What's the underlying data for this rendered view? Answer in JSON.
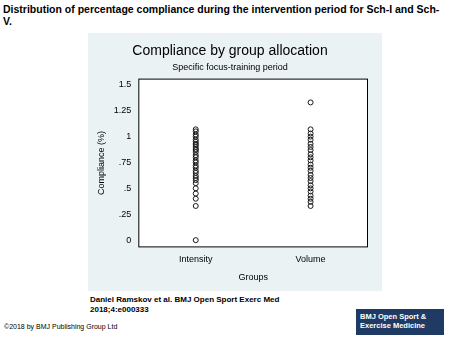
{
  "header": {
    "title": "Distribution of percentage compliance during the intervention period for Sch-I and Sch-V."
  },
  "chart_data": {
    "type": "scatter",
    "title": "Compliance by group allocation",
    "subtitle": "Specific focus-training period",
    "x_label": "Groups",
    "y_label": "Compliance (%)",
    "categories": [
      "Intensity",
      "Volume"
    ],
    "values": [
      [
        0,
        0.33,
        0.4,
        0.45,
        0.5,
        0.55,
        0.58,
        0.6,
        0.62,
        0.65,
        0.67,
        0.7,
        0.72,
        0.75,
        0.77,
        0.8,
        0.82,
        0.85,
        0.87,
        0.88,
        0.9,
        0.92,
        0.93,
        0.95,
        0.97,
        1,
        1.02,
        1.05,
        1.07
      ],
      [
        0.33,
        0.37,
        0.4,
        0.43,
        0.47,
        0.5,
        0.53,
        0.57,
        0.6,
        0.63,
        0.67,
        0.7,
        0.73,
        0.77,
        0.8,
        0.83,
        0.87,
        0.9,
        0.93,
        0.97,
        1,
        1.03,
        1.07,
        1.33
      ]
    ],
    "color": "#1a1a1a",
    "marker": "circle_open",
    "grid": false,
    "ylim": [
      -0.07,
      1.56
    ],
    "yticks": [
      0,
      {
        "value": 0.25,
        "label": ".25"
      },
      {
        "value": 0.5,
        "label": ".5"
      },
      {
        "value": 0.75,
        "label": ".75"
      },
      1,
      1.25,
      1.5
    ]
  },
  "footer": {
    "citation": [
      "Daniel Ramskov et al. BMJ Open Sport Exerc Med",
      "2018;4:e000333"
    ],
    "copyright": "©2018 by BMJ Publishing Group Ltd",
    "logo": [
      "BMJ Open Sport &",
      "Exercise Medicine"
    ]
  }
}
